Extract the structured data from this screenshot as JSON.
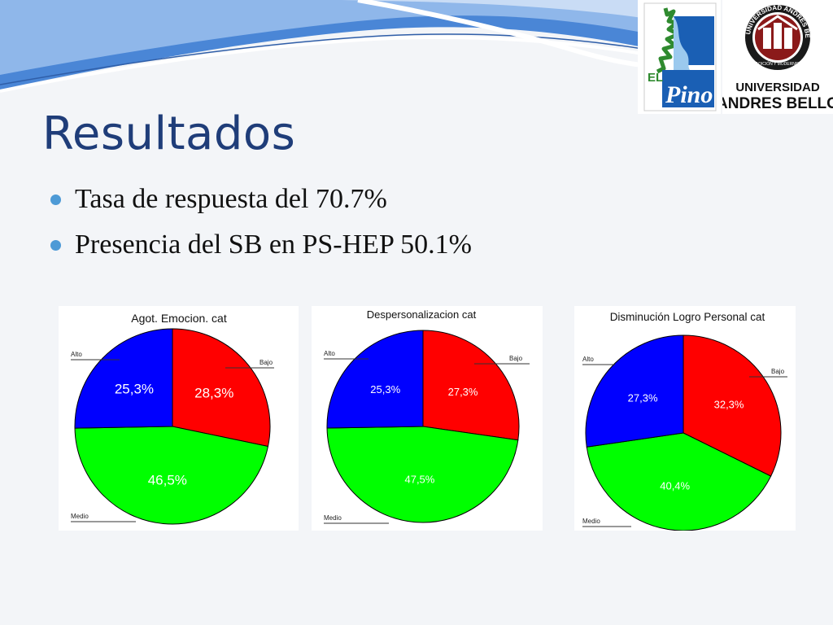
{
  "slide": {
    "title": "Resultados",
    "bullets": [
      "Tasa de respuesta del 70.7%",
      "Presencia del SB en PS-HEP 50.1%"
    ]
  },
  "logos": {
    "pino": {
      "text_el": "EL",
      "text_pino": "Pino"
    },
    "unab": {
      "ring_text": "UNIVERSIDAD ANDRES BELLO",
      "motto": "TRADICIÓN Y MODERNIDAD",
      "line1": "UNIVERSIDAD",
      "line2": "ANDRES BELLO"
    }
  },
  "colors": {
    "title": "#1f3d79",
    "bullet": "#4d9ad6",
    "Bajo": "#ff0000",
    "Medio": "#00ff00",
    "Alto": "#0000ff"
  },
  "chart_data": [
    {
      "type": "pie",
      "title": "Agot. Emocion. cat",
      "categories": [
        "Bajo",
        "Medio",
        "Alto"
      ],
      "values": [
        28.3,
        46.5,
        25.3
      ],
      "labels": [
        "28,3%",
        "46,5%",
        "25,3%"
      ],
      "legend": [
        "Alto",
        "Bajo",
        "Medio"
      ]
    },
    {
      "type": "pie",
      "title": "Despersonalizacion cat",
      "categories": [
        "Bajo",
        "Medio",
        "Alto"
      ],
      "values": [
        27.3,
        47.5,
        25.3
      ],
      "labels": [
        "27,3%",
        "47,5%",
        "25,3%"
      ],
      "legend": [
        "Alto",
        "Bajo",
        "Medio"
      ]
    },
    {
      "type": "pie",
      "title": "Disminución Logro Personal cat",
      "categories": [
        "Bajo",
        "Medio",
        "Alto"
      ],
      "values": [
        32.3,
        40.4,
        27.3
      ],
      "labels": [
        "32,3%",
        "40,4%",
        "27,3%"
      ],
      "legend": [
        "Alto",
        "Bajo",
        "Medio"
      ]
    }
  ]
}
